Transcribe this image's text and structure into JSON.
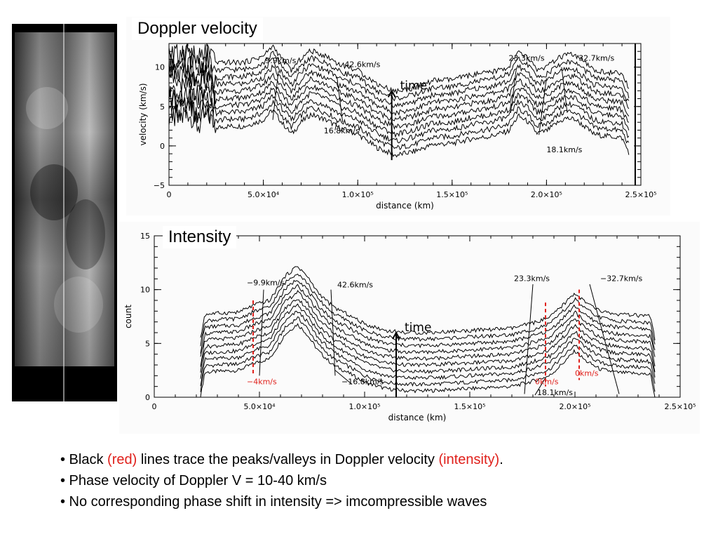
{
  "colors": {
    "red_text": "#e0201b",
    "black": "#000000"
  },
  "strip": {
    "description_icon": "grayscale-time-distance-image"
  },
  "chart_data": [
    {
      "type": "line",
      "title": "Doppler velocity",
      "xlabel": "distance (km)",
      "ylabel": "velocity (km/s)",
      "xlim": [
        0,
        250000
      ],
      "ylim": [
        -5,
        13
      ],
      "xticks": [
        0,
        50000,
        100000,
        150000,
        200000,
        250000
      ],
      "xtick_labels": [
        "0",
        "5.0×10⁴",
        "1.0×10⁵",
        "1.5×10⁵",
        "2.0×10⁵",
        "2.5×10⁵"
      ],
      "yticks": [
        -5,
        0,
        5,
        10
      ],
      "ytick_labels": [
        "−5",
        "0",
        "5",
        "10"
      ],
      "n_curves": 10,
      "curve_spacing": 0.9,
      "base_profile": {
        "x": [
          0,
          5000,
          10000,
          15000,
          20000,
          25000,
          30000,
          40000,
          50000,
          55000,
          60000,
          65000,
          70000,
          75000,
          80000,
          85000,
          90000,
          100000,
          110000,
          120000,
          130000,
          140000,
          150000,
          160000,
          170000,
          180000,
          185000,
          190000,
          195000,
          200000,
          205000,
          210000,
          215000,
          220000,
          225000,
          230000,
          235000,
          240000,
          244000
        ],
        "y": [
          4.0,
          3.2,
          4.3,
          2.6,
          3.8,
          2.3,
          2.5,
          2.5,
          3.3,
          4.6,
          2.9,
          1.5,
          3.0,
          4.0,
          3.6,
          3.1,
          2.3,
          1.5,
          -0.2,
          -1.2,
          -0.7,
          0.2,
          0.3,
          0.9,
          1.2,
          1.9,
          3.8,
          3.1,
          1.6,
          1.9,
          2.8,
          3.5,
          3.4,
          2.5,
          1.5,
          1.3,
          1.2,
          1.0,
          -1.0
        ]
      },
      "annotations": [
        {
          "label": "9.9km/s",
          "from": [
            55000,
            3.3
          ],
          "to": [
            58000,
            9.5
          ],
          "text_at": [
            51000,
            10.5
          ]
        },
        {
          "label": "42.6km/s",
          "from": [
            89000,
            8.8
          ],
          "to": [
            92000,
            3.0
          ],
          "text_at": [
            93000,
            10.0
          ]
        },
        {
          "label": "16.8km/s",
          "from": [
            89000,
            3.2
          ],
          "to": [
            88000,
            2.0
          ],
          "text_at": [
            82000,
            1.6
          ]
        },
        {
          "label": "23.3km/s",
          "from": [
            181000,
            4.2
          ],
          "to": [
            184000,
            9.8
          ],
          "text_at": [
            180000,
            10.8
          ]
        },
        {
          "label": "32.7km/s",
          "from": [
            208000,
            10.0
          ],
          "to": [
            211000,
            4.2
          ],
          "text_at": [
            217000,
            10.8
          ]
        },
        {
          "label": "18.1km/s",
          "from": [
            196000,
            1.4
          ],
          "to": [
            200000,
            8.6
          ],
          "text_at": [
            200000,
            -0.8
          ]
        }
      ],
      "time_arrow": {
        "label": "time",
        "x": 118000,
        "y_from": -1.8,
        "y_to": 7.0
      },
      "boundary_line_x": 247000
    },
    {
      "type": "line",
      "title": "Intensity",
      "xlabel": "distance (km)",
      "ylabel": "count",
      "xlim": [
        0,
        250000
      ],
      "ylim": [
        0,
        15
      ],
      "xticks": [
        0,
        50000,
        100000,
        150000,
        200000,
        250000
      ],
      "xtick_labels": [
        "0",
        "5.0×10⁴",
        "1.0×10⁵",
        "1.5×10⁵",
        "2.0×10⁵",
        "2.5×10⁵"
      ],
      "yticks": [
        0,
        5,
        10,
        15
      ],
      "ytick_labels": [
        "0",
        "5",
        "10",
        "15"
      ],
      "n_curves": 10,
      "curve_spacing": 0.6,
      "base_profile": {
        "x": [
          22000,
          24000,
          30000,
          40000,
          48000,
          55000,
          62000,
          68000,
          72000,
          78000,
          85000,
          92000,
          100000,
          110000,
          120000,
          130000,
          140000,
          150000,
          160000,
          170000,
          180000,
          188000,
          195000,
          200000,
          205000,
          212000,
          220000,
          230000,
          236000,
          238000
        ],
        "y": [
          0,
          2.3,
          2.4,
          2.5,
          3.2,
          3.6,
          5.8,
          6.8,
          6.0,
          4.3,
          3.0,
          2.3,
          1.4,
          0.8,
          0.6,
          0.6,
          0.7,
          0.8,
          0.9,
          1.0,
          1.5,
          2.0,
          3.3,
          4.3,
          3.4,
          2.6,
          2.3,
          2.2,
          2.1,
          0
        ]
      },
      "annotations": [
        {
          "label": "−9.9km/s",
          "from": [
            50000,
            2.0
          ],
          "to": [
            52000,
            10.0
          ],
          "text_at": [
            44000,
            10.4
          ]
        },
        {
          "label": "42.6km/s",
          "from": [
            84000,
            10.0
          ],
          "to": [
            86000,
            2.0
          ],
          "text_at": [
            87000,
            10.2
          ]
        },
        {
          "label": "23.3km/s",
          "from": [
            176000,
            0.3
          ],
          "to": [
            180000,
            10.5
          ],
          "text_at": [
            171000,
            10.8
          ]
        },
        {
          "label": "−32.7km/s",
          "from": [
            207000,
            10.5
          ],
          "to": [
            221000,
            0.3
          ],
          "text_at": [
            212000,
            10.8
          ]
        },
        {
          "label": "−16.8km/s",
          "from": [
            86000,
            2.5
          ],
          "to": [
            94000,
            1.2
          ],
          "text_at": [
            89000,
            1.2
          ]
        },
        {
          "label": "18.1km/s",
          "from": [
            181000,
            0.2
          ],
          "to": [
            186000,
            1.8
          ],
          "text_at": [
            182000,
            0.2
          ]
        }
      ],
      "red_markers": [
        {
          "x": 47000,
          "y_from": 9.0,
          "y_to": 2.0,
          "label": "−4km/s",
          "text_at": [
            44000,
            1.2
          ]
        },
        {
          "x": 186000,
          "y_from": 8.8,
          "y_to": 1.0,
          "label": "0km/s",
          "text_at": [
            181000,
            1.2
          ]
        },
        {
          "x": 202000,
          "y_from": 10.0,
          "y_to": 1.6,
          "label": "0km/s",
          "text_at": [
            200000,
            2.0
          ]
        }
      ],
      "time_arrow": {
        "label": "time",
        "x": 115000,
        "y_from": 0.0,
        "y_to": 6.0
      }
    }
  ],
  "bullets": [
    {
      "parts": [
        {
          "text": "• Black ",
          "red": false
        },
        {
          "text": "(red)",
          "red": true
        },
        {
          "text": " lines trace the peaks/valleys in Doppler velocity ",
          "red": false
        },
        {
          "text": "(intensity)",
          "red": true
        },
        {
          "text": ".",
          "red": false
        }
      ]
    },
    {
      "parts": [
        {
          "text": "• Phase velocity of Doppler V = 10-40 km/s",
          "red": false
        }
      ]
    },
    {
      "parts": [
        {
          "text": "• No corresponding phase shift in intensity => imcompressible waves",
          "red": false
        }
      ]
    }
  ]
}
